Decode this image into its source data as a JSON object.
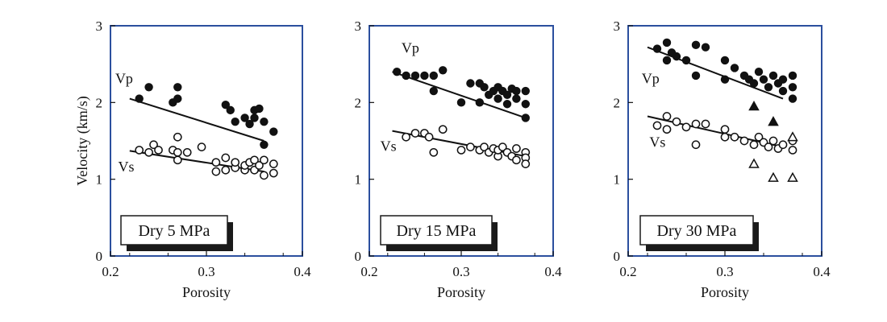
{
  "figure": {
    "ylabel": "Velocity (km/s)",
    "xlabel": "Porosity"
  },
  "colors": {
    "frame": "#2b4f9e",
    "marker": "#111111",
    "background": "#ffffff"
  },
  "chart_data": [
    {
      "type": "scatter",
      "title": "Dry 5 MPa",
      "xlabel": "Porosity",
      "ylabel": "Velocity (km/s)",
      "xlim": [
        0.2,
        0.4
      ],
      "ylim": [
        0,
        3
      ],
      "xticks": [
        "0.2",
        "0.3",
        "0.4"
      ],
      "yticks": [
        "0",
        "1",
        "2",
        "3"
      ],
      "annotations": [
        {
          "text": "Vp",
          "x": 0.205,
          "y": 2.25
        },
        {
          "text": "Vs",
          "x": 0.208,
          "y": 1.1
        }
      ],
      "series": [
        {
          "name": "Vp",
          "marker": "filled-circle",
          "points": [
            [
              0.23,
              2.05
            ],
            [
              0.24,
              2.2
            ],
            [
              0.265,
              2.0
            ],
            [
              0.27,
              2.05
            ],
            [
              0.27,
              2.2
            ],
            [
              0.32,
              1.97
            ],
            [
              0.325,
              1.9
            ],
            [
              0.33,
              1.75
            ],
            [
              0.34,
              1.8
            ],
            [
              0.345,
              1.72
            ],
            [
              0.35,
              1.8
            ],
            [
              0.35,
              1.9
            ],
            [
              0.355,
              1.92
            ],
            [
              0.36,
              1.75
            ],
            [
              0.36,
              1.45
            ],
            [
              0.37,
              1.62
            ]
          ]
        },
        {
          "name": "Vs",
          "marker": "open-circle",
          "points": [
            [
              0.23,
              1.38
            ],
            [
              0.24,
              1.35
            ],
            [
              0.245,
              1.45
            ],
            [
              0.25,
              1.38
            ],
            [
              0.265,
              1.38
            ],
            [
              0.27,
              1.25
            ],
            [
              0.27,
              1.35
            ],
            [
              0.27,
              1.55
            ],
            [
              0.28,
              1.35
            ],
            [
              0.295,
              1.42
            ],
            [
              0.31,
              1.1
            ],
            [
              0.31,
              1.22
            ],
            [
              0.32,
              1.12
            ],
            [
              0.32,
              1.28
            ],
            [
              0.33,
              1.15
            ],
            [
              0.33,
              1.22
            ],
            [
              0.34,
              1.12
            ],
            [
              0.34,
              1.18
            ],
            [
              0.345,
              1.22
            ],
            [
              0.35,
              1.12
            ],
            [
              0.35,
              1.25
            ],
            [
              0.355,
              1.18
            ],
            [
              0.36,
              1.05
            ],
            [
              0.36,
              1.25
            ],
            [
              0.37,
              1.08
            ],
            [
              0.37,
              1.2
            ]
          ]
        }
      ],
      "lines": [
        {
          "name": "Vp",
          "x": [
            0.22,
            0.36
          ],
          "y": [
            2.05,
            1.5
          ]
        },
        {
          "name": "Vs",
          "x": [
            0.22,
            0.36
          ],
          "y": [
            1.37,
            1.1
          ]
        }
      ]
    },
    {
      "type": "scatter",
      "title": "Dry 15 MPa",
      "xlabel": "Porosity",
      "ylabel": "",
      "xlim": [
        0.2,
        0.4
      ],
      "ylim": [
        0,
        3
      ],
      "xticks": [
        "0.2",
        "0.3",
        "0.4"
      ],
      "yticks": [
        "0",
        "1",
        "2",
        "3"
      ],
      "annotations": [
        {
          "text": "Vp",
          "x": 0.235,
          "y": 2.65
        },
        {
          "text": "Vs",
          "x": 0.212,
          "y": 1.37
        }
      ],
      "series": [
        {
          "name": "Vp",
          "marker": "filled-circle",
          "points": [
            [
              0.23,
              2.4
            ],
            [
              0.24,
              2.35
            ],
            [
              0.25,
              2.35
            ],
            [
              0.26,
              2.35
            ],
            [
              0.27,
              2.35
            ],
            [
              0.27,
              2.15
            ],
            [
              0.28,
              2.42
            ],
            [
              0.3,
              2.0
            ],
            [
              0.31,
              2.25
            ],
            [
              0.32,
              2.25
            ],
            [
              0.32,
              2.0
            ],
            [
              0.325,
              2.2
            ],
            [
              0.33,
              2.1
            ],
            [
              0.335,
              2.15
            ],
            [
              0.34,
              2.05
            ],
            [
              0.34,
              2.2
            ],
            [
              0.345,
              2.15
            ],
            [
              0.35,
              2.1
            ],
            [
              0.35,
              1.98
            ],
            [
              0.355,
              2.18
            ],
            [
              0.36,
              2.05
            ],
            [
              0.36,
              2.15
            ],
            [
              0.37,
              2.15
            ],
            [
              0.37,
              1.98
            ],
            [
              0.37,
              1.8
            ]
          ]
        },
        {
          "name": "Vs",
          "marker": "open-circle",
          "points": [
            [
              0.24,
              1.55
            ],
            [
              0.25,
              1.6
            ],
            [
              0.26,
              1.6
            ],
            [
              0.265,
              1.55
            ],
            [
              0.27,
              1.35
            ],
            [
              0.28,
              1.65
            ],
            [
              0.3,
              1.38
            ],
            [
              0.31,
              1.42
            ],
            [
              0.32,
              1.38
            ],
            [
              0.325,
              1.42
            ],
            [
              0.33,
              1.35
            ],
            [
              0.335,
              1.4
            ],
            [
              0.34,
              1.3
            ],
            [
              0.34,
              1.38
            ],
            [
              0.345,
              1.42
            ],
            [
              0.35,
              1.35
            ],
            [
              0.355,
              1.3
            ],
            [
              0.36,
              1.4
            ],
            [
              0.36,
              1.25
            ],
            [
              0.37,
              1.35
            ],
            [
              0.37,
              1.28
            ],
            [
              0.37,
              1.2
            ]
          ]
        }
      ],
      "lines": [
        {
          "name": "Vp",
          "x": [
            0.225,
            0.37
          ],
          "y": [
            2.4,
            1.8
          ]
        },
        {
          "name": "Vs",
          "x": [
            0.225,
            0.37
          ],
          "y": [
            1.63,
            1.3
          ]
        }
      ]
    },
    {
      "type": "scatter",
      "title": "Dry 30 MPa",
      "xlabel": "Porosity",
      "ylabel": "",
      "xlim": [
        0.2,
        0.4
      ],
      "ylim": [
        0,
        3
      ],
      "xticks": [
        "0.2",
        "0.3",
        "0.4"
      ],
      "yticks": [
        "0",
        "1",
        "2",
        "3"
      ],
      "annotations": [
        {
          "text": "Vp",
          "x": 0.214,
          "y": 2.25
        },
        {
          "text": "Vs",
          "x": 0.222,
          "y": 1.42
        }
      ],
      "series": [
        {
          "name": "Vp",
          "marker": "filled-circle",
          "points": [
            [
              0.23,
              2.7
            ],
            [
              0.24,
              2.55
            ],
            [
              0.24,
              2.78
            ],
            [
              0.245,
              2.65
            ],
            [
              0.25,
              2.6
            ],
            [
              0.26,
              2.55
            ],
            [
              0.27,
              2.35
            ],
            [
              0.27,
              2.75
            ],
            [
              0.28,
              2.72
            ],
            [
              0.3,
              2.55
            ],
            [
              0.3,
              2.3
            ],
            [
              0.31,
              2.45
            ],
            [
              0.32,
              2.35
            ],
            [
              0.325,
              2.3
            ],
            [
              0.33,
              2.25
            ],
            [
              0.335,
              2.4
            ],
            [
              0.34,
              2.3
            ],
            [
              0.345,
              2.2
            ],
            [
              0.35,
              2.35
            ],
            [
              0.355,
              2.25
            ],
            [
              0.36,
              2.3
            ],
            [
              0.36,
              2.15
            ],
            [
              0.37,
              2.35
            ],
            [
              0.37,
              2.2
            ],
            [
              0.37,
              2.05
            ]
          ]
        },
        {
          "name": "Vs",
          "marker": "open-circle",
          "points": [
            [
              0.23,
              1.7
            ],
            [
              0.24,
              1.65
            ],
            [
              0.24,
              1.82
            ],
            [
              0.25,
              1.75
            ],
            [
              0.26,
              1.68
            ],
            [
              0.27,
              1.45
            ],
            [
              0.27,
              1.72
            ],
            [
              0.28,
              1.72
            ],
            [
              0.3,
              1.65
            ],
            [
              0.3,
              1.55
            ],
            [
              0.31,
              1.55
            ],
            [
              0.32,
              1.5
            ],
            [
              0.33,
              1.45
            ],
            [
              0.335,
              1.55
            ],
            [
              0.34,
              1.48
            ],
            [
              0.345,
              1.42
            ],
            [
              0.35,
              1.5
            ],
            [
              0.355,
              1.4
            ],
            [
              0.36,
              1.45
            ],
            [
              0.37,
              1.5
            ],
            [
              0.37,
              1.38
            ]
          ]
        },
        {
          "name": "",
          "marker": "filled-triangle",
          "points": [
            [
              0.33,
              1.95
            ],
            [
              0.35,
              1.75
            ]
          ]
        },
        {
          "name": "",
          "marker": "open-triangle",
          "points": [
            [
              0.33,
              1.2
            ],
            [
              0.35,
              1.02
            ],
            [
              0.37,
              1.02
            ],
            [
              0.37,
              1.55
            ]
          ]
        }
      ],
      "lines": [
        {
          "name": "Vp",
          "x": [
            0.22,
            0.36
          ],
          "y": [
            2.72,
            2.05
          ]
        },
        {
          "name": "Vs",
          "x": [
            0.22,
            0.36
          ],
          "y": [
            1.82,
            1.42
          ]
        }
      ]
    }
  ]
}
